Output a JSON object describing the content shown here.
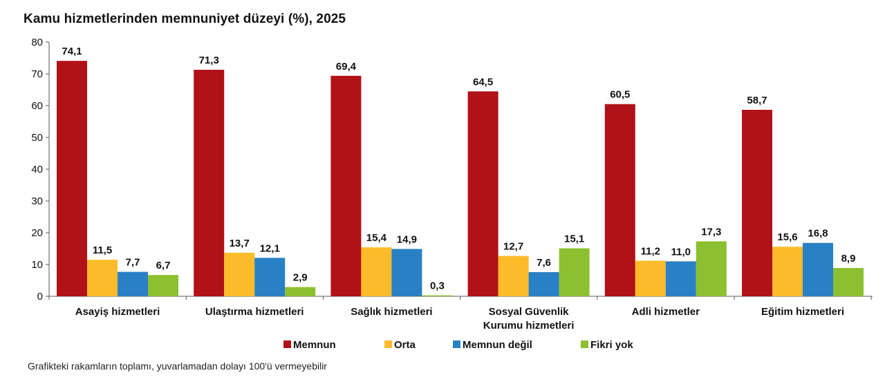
{
  "chart_data": {
    "type": "bar",
    "title": "Kamu hizmetlerinden memnuniyet düzeyi (%), 2025",
    "xlabel": "",
    "ylabel": "",
    "ylim": [
      0,
      80
    ],
    "yticks": [
      0,
      10,
      20,
      30,
      40,
      50,
      60,
      70,
      80
    ],
    "grid": false,
    "legend_position": "bottom",
    "categories": [
      [
        "Asayiş hizmetleri"
      ],
      [
        "Ulaştırma hizmetleri"
      ],
      [
        "Sağlık hizmetleri"
      ],
      [
        "Sosyal Güvenlik",
        "Kurumu hizmetleri"
      ],
      [
        "Adli hizmetler"
      ],
      [
        "Eğitim hizmetleri"
      ]
    ],
    "series": [
      {
        "name": "Memnun",
        "color": "#b01218",
        "values": [
          74.1,
          71.3,
          69.4,
          64.5,
          60.5,
          58.7
        ],
        "labels": [
          "74,1",
          "71,3",
          "69,4",
          "64,5",
          "60,5",
          "58,7"
        ]
      },
      {
        "name": "Orta",
        "color": "#fbbb2a",
        "values": [
          11.5,
          13.7,
          15.4,
          12.7,
          11.2,
          15.6
        ],
        "labels": [
          "11,5",
          "13,7",
          "15,4",
          "12,7",
          "11,2",
          "15,6"
        ]
      },
      {
        "name": "Memnun değil",
        "color": "#2a80c4",
        "values": [
          7.7,
          12.1,
          14.9,
          7.6,
          11.0,
          16.8
        ],
        "labels": [
          "7,7",
          "12,1",
          "14,9",
          "7,6",
          "11,0",
          "16,8"
        ]
      },
      {
        "name": "Fikri yok",
        "color": "#8cc030",
        "values": [
          6.7,
          2.9,
          0.3,
          15.1,
          17.3,
          8.9
        ],
        "labels": [
          "6,7",
          "2,9",
          "0,3",
          "15,1",
          "17,3",
          "8,9"
        ]
      }
    ],
    "footnote": "Grafikteki rakamların toplamı, yuvarlamadan dolayı 100'ü vermeyebilir"
  }
}
